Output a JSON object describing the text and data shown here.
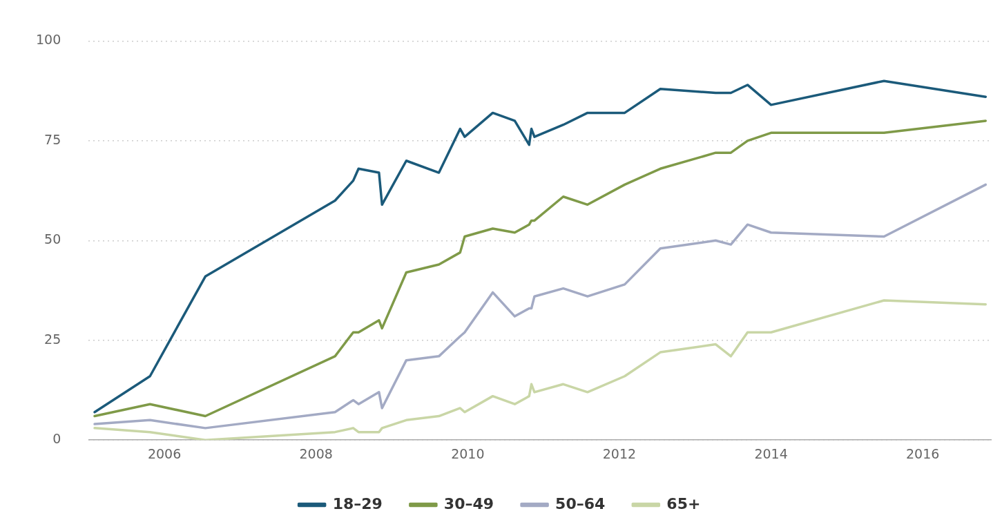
{
  "chart_data": {
    "type": "line",
    "x": [
      2005.08,
      2005.81,
      2006.54,
      2008.25,
      2008.49,
      2008.56,
      2008.83,
      2008.87,
      2009.19,
      2009.62,
      2009.9,
      2009.96,
      2010.33,
      2010.62,
      2010.81,
      2010.84,
      2010.88,
      2011.26,
      2011.58,
      2012.07,
      2012.54,
      2013.27,
      2013.47,
      2013.69,
      2014.0,
      2015.49,
      2016.83
    ],
    "series": [
      {
        "name": "18–29",
        "color": "#1b5a7a",
        "values": [
          7,
          16,
          41,
          60,
          65,
          68,
          67,
          59,
          70,
          67,
          78,
          76,
          82,
          80,
          74,
          78,
          76,
          79,
          82,
          82,
          88,
          87,
          87,
          89,
          84,
          90,
          86
        ]
      },
      {
        "name": "30–49",
        "color": "#7f9a48",
        "values": [
          6,
          9,
          6,
          21,
          27,
          27,
          30,
          28,
          42,
          44,
          47,
          51,
          53,
          52,
          54,
          55,
          55,
          61,
          59,
          64,
          68,
          72,
          72,
          75,
          77,
          77,
          80
        ]
      },
      {
        "name": "50–64",
        "color": "#a3aac4",
        "values": [
          4,
          5,
          3,
          7,
          10,
          9,
          12,
          8,
          20,
          21,
          26,
          27,
          37,
          31,
          33,
          33,
          36,
          38,
          36,
          39,
          48,
          50,
          49,
          54,
          52,
          51,
          64
        ]
      },
      {
        "name": "65+",
        "color": "#c9d6a6",
        "values": [
          3,
          2,
          0,
          2,
          3,
          2,
          2,
          3,
          5,
          6,
          8,
          7,
          11,
          9,
          11,
          14,
          12,
          14,
          12,
          16,
          22,
          24,
          21,
          27,
          27,
          35,
          34
        ]
      }
    ],
    "xlim": [
      2005,
      2016.9
    ],
    "xticks": [
      2006,
      2008,
      2010,
      2012,
      2014,
      2016
    ],
    "ylim": [
      0,
      100
    ],
    "yticks": [
      0,
      25,
      50,
      75,
      100
    ],
    "grid": "y",
    "legend": "bottom",
    "marker": "none",
    "line_style": "solid"
  }
}
